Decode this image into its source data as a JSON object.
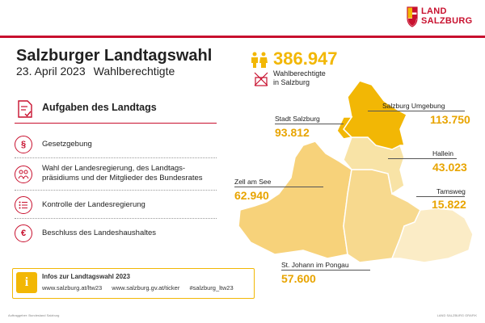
{
  "logo": {
    "line1": "LAND",
    "line2": "SALZBURG"
  },
  "header": {
    "title": "Salzburger Landtagswahl",
    "date": "23. April 2023",
    "topic": "Wahlberechtigte"
  },
  "tasks": {
    "heading": "Aufgaben des Landtags",
    "items": [
      {
        "icon": "paragraph-icon",
        "label": "Gesetzgebung"
      },
      {
        "icon": "people-vote-icon",
        "label": "Wahl der Landesregierung, des Landtags-\npräsidiums und der Mitglieder des Bundesrates"
      },
      {
        "icon": "list-icon",
        "label": "Kontrolle der Landesregierung"
      },
      {
        "icon": "euro-icon",
        "label": "Beschluss des Landeshaushaltes"
      }
    ]
  },
  "info": {
    "title": "Infos zur Landtagswahl 2023",
    "links": [
      "www.salzburg.at/ltw23",
      "www.salzburg.gv.at/ticker",
      "#salzburg_ltw23"
    ]
  },
  "total": {
    "value": "386.947",
    "label1": "Wahlberechtigte",
    "label2": "in Salzburg"
  },
  "districts": [
    {
      "name": "Stadt Salzburg",
      "value": "93.812",
      "color": "#f2b705"
    },
    {
      "name": "Salzburg Umgebung",
      "value": "113.750",
      "color": "#f2b705"
    },
    {
      "name": "Hallein",
      "value": "43.023",
      "color": "#f8e3a6"
    },
    {
      "name": "Zell am See",
      "value": "62.940",
      "color": "#f7d27a"
    },
    {
      "name": "Tamsweg",
      "value": "15.822",
      "color": "#fbecc6"
    },
    {
      "name": "St. Johann im Pongau",
      "value": "57.600",
      "color": "#f7d98e"
    }
  ],
  "footer": {
    "left": "Auftraggeber: Bundesland Salzburg",
    "right": "LAND SALZBURG GRAFIK"
  },
  "colors": {
    "accent": "#c8102e",
    "yellow": "#f2b705"
  }
}
